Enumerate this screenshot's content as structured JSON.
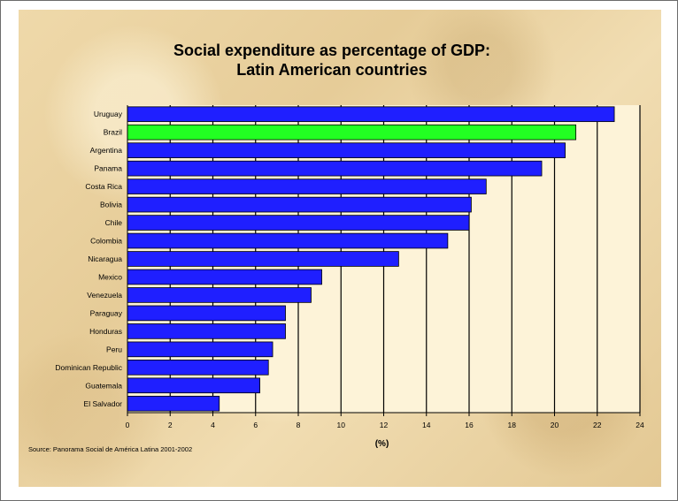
{
  "colors": {
    "bar": "#1f1fff",
    "highlight": "#22ff22",
    "plot_bg": "#fdf3d8",
    "gridline": "#000000"
  },
  "chart_data": {
    "type": "bar",
    "orientation": "horizontal",
    "title": "Social expenditure as percentage of GDP: Latin American countries",
    "title_lines": [
      "Social expenditure as percentage of GDP:",
      "Latin American countries"
    ],
    "xlabel": "(%)",
    "ylabel": "",
    "xlim": [
      0,
      24
    ],
    "xticks": [
      0,
      2,
      4,
      6,
      8,
      10,
      12,
      14,
      16,
      18,
      20,
      22,
      24
    ],
    "grid": true,
    "highlighted_category": "Brazil",
    "categories": [
      "Uruguay",
      "Brazil",
      "Argentina",
      "Panama",
      "Costa Rica",
      "Bolivia",
      "Chile",
      "Colombia",
      "Nicaragua",
      "Mexico",
      "Venezuela",
      "Paraguay",
      "Honduras",
      "Peru",
      "Dominican Republic",
      "Guatemala",
      "El Salvador"
    ],
    "values": [
      22.8,
      21.0,
      20.5,
      19.4,
      16.8,
      16.1,
      16.0,
      15.0,
      12.7,
      9.1,
      8.6,
      7.4,
      7.4,
      6.8,
      6.6,
      6.2,
      4.3
    ]
  },
  "source": "Source:  Panorama Social de América Latina 2001-2002"
}
